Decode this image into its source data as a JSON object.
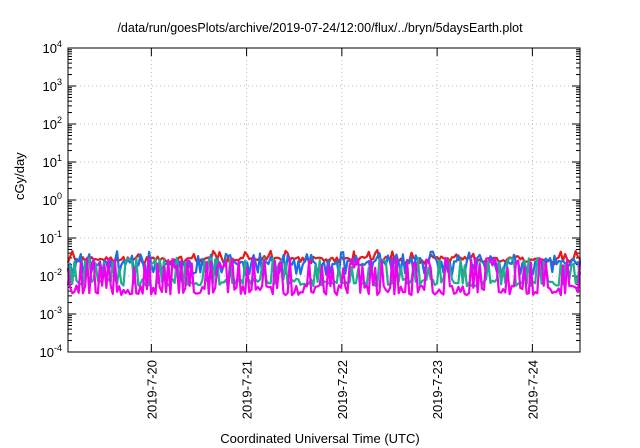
{
  "chart_data": {
    "type": "line",
    "title": "/data/run/goesPlots/archive/2019-07-24/12:00/flux/../bryn/5daysEarth.plot",
    "xlabel": "Coordinated Universal Time (UTC)",
    "ylabel": "cGy/day",
    "yscale": "log",
    "ylim": [
      0.0001,
      10000
    ],
    "xlim": [
      "2019-07-19T03:00",
      "2019-07-24T12:00"
    ],
    "grid": true,
    "legend": "none",
    "y_ticks": [
      {
        "base": "10",
        "exp": "-4"
      },
      {
        "base": "10",
        "exp": "-3"
      },
      {
        "base": "10",
        "exp": "-2"
      },
      {
        "base": "10",
        "exp": "-1"
      },
      {
        "base": "10",
        "exp": "0"
      },
      {
        "base": "10",
        "exp": "1"
      },
      {
        "base": "10",
        "exp": "2"
      },
      {
        "base": "10",
        "exp": "3"
      },
      {
        "base": "10",
        "exp": "4"
      }
    ],
    "x_ticks": [
      "2019-7-20",
      "2019-7-21",
      "2019-7-22",
      "2019-7-23",
      "2019-7-24"
    ],
    "series": [
      {
        "color": "#e8191a",
        "base": 0.028,
        "low": 0.022,
        "high": 0.048,
        "spikiness": 0.35
      },
      {
        "color": "#1a6fe8",
        "base": 0.022,
        "low": 0.012,
        "high": 0.045,
        "spikiness": 0.55
      },
      {
        "color": "#1fae8c",
        "base": 0.0075,
        "low": 0.006,
        "high": 0.03,
        "spikiness": 0.6
      },
      {
        "color": "#f000f0",
        "base": 0.005,
        "low": 0.0035,
        "high": 0.03,
        "spikiness": 0.7
      }
    ]
  }
}
